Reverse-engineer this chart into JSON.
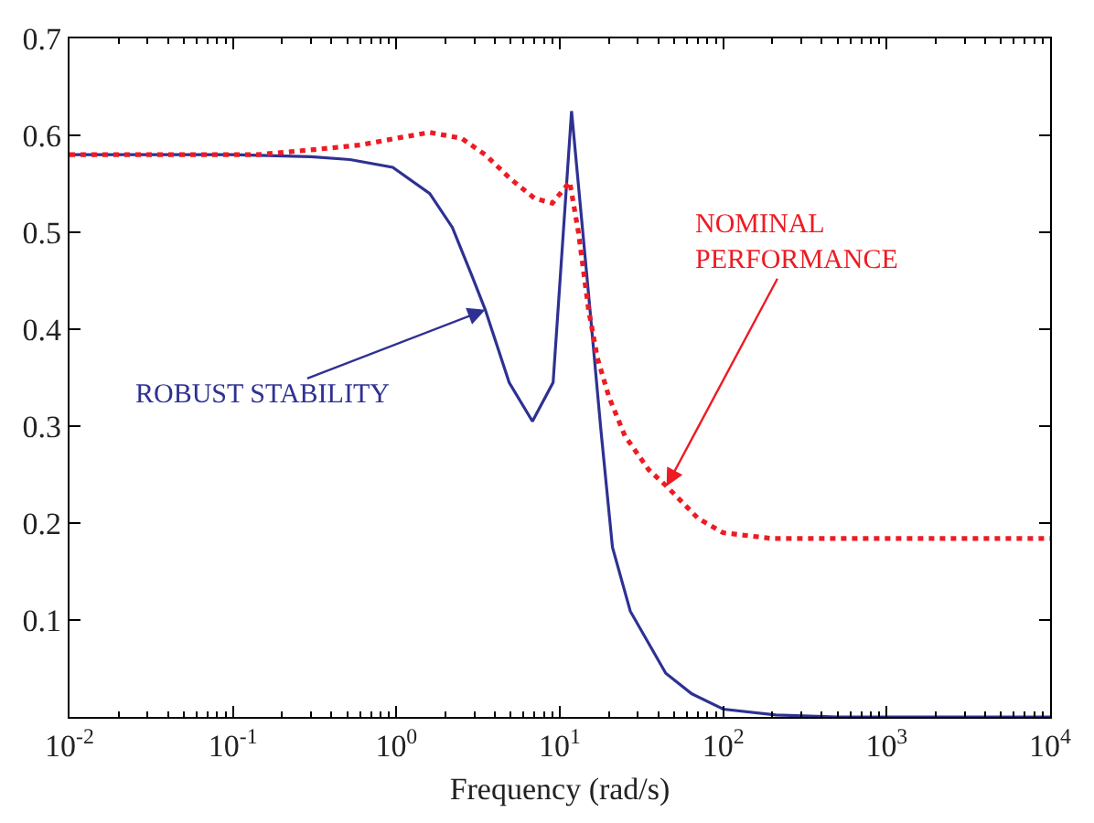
{
  "chart_data": {
    "type": "line",
    "xlabel": "Frequency (rad/s)",
    "log": "x",
    "xlim": [
      0.01,
      10000
    ],
    "xticks": [
      {
        "value": 0.01,
        "label": "10$^{-2}$"
      },
      {
        "value": 0.1,
        "label": "10$^{-1}$"
      },
      {
        "value": 1,
        "label": "10$^{0}$"
      },
      {
        "value": 10,
        "label": "10$^{1}$"
      },
      {
        "value": 100,
        "label": "10$^{2}$"
      },
      {
        "value": 1000,
        "label": "10$^{3}$"
      },
      {
        "value": 10000,
        "label": "10$^{4}$"
      }
    ],
    "ylim": [
      0,
      0.7
    ],
    "yticks": [
      0.1,
      0.2,
      0.3,
      0.4,
      0.5,
      0.6,
      0.7
    ],
    "series": [
      {
        "color": "#2e3192",
        "line_style": "solid",
        "marker": "none",
        "x": [
          0.01,
          0.1,
          0.3,
          0.52,
          0.95,
          1.6,
          2.2,
          2.9,
          3.5,
          4.9,
          6.8,
          9.1,
          11.8,
          15,
          17.8,
          21,
          27,
          44.5,
          64,
          100,
          210,
          500,
          10000
        ],
        "values": [
          0.58,
          0.58,
          0.578,
          0.575,
          0.567,
          0.54,
          0.505,
          0.455,
          0.42,
          0.345,
          0.305,
          0.345,
          0.625,
          0.436,
          0.298,
          0.175,
          0.109,
          0.045,
          0.024,
          0.008,
          0.002,
          0,
          0
        ]
      },
      {
        "color": "#ed1c24",
        "line_style": "dotted",
        "marker": "none",
        "x": [
          0.01,
          0.14,
          0.3,
          0.6,
          1,
          1.6,
          2.5,
          3.5,
          5,
          7,
          9,
          11.5,
          13,
          15,
          17,
          20,
          25,
          35,
          45,
          70,
          100,
          200,
          10000
        ],
        "values": [
          0.58,
          0.58,
          0.585,
          0.59,
          0.597,
          0.603,
          0.597,
          0.58,
          0.555,
          0.535,
          0.53,
          0.552,
          0.5,
          0.42,
          0.37,
          0.33,
          0.29,
          0.255,
          0.238,
          0.205,
          0.19,
          0.184,
          0.184
        ]
      }
    ],
    "annotations": [
      {
        "text": "ROBUST STABILITY",
        "x": 3.5,
        "y": 0.42
      },
      {
        "text": "NOMINAL\nPERFORMANCE",
        "x": 45,
        "y": 0.238
      }
    ]
  }
}
